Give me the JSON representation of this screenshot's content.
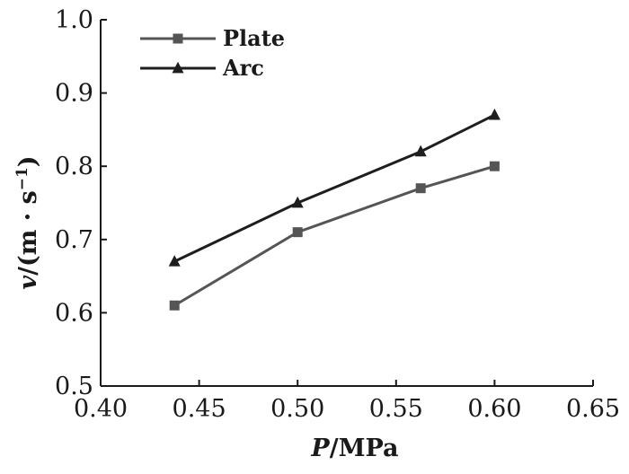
{
  "chart_data": {
    "type": "line",
    "title": "",
    "xlabel": {
      "var": "P",
      "unit": "/MPa"
    },
    "ylabel": {
      "var": "v",
      "unit": "/(m · s",
      "exp": "−1",
      "close": ")"
    },
    "xlim": [
      0.4,
      0.65
    ],
    "ylim": [
      0.5,
      1.0
    ],
    "xticks": [
      0.4,
      0.45,
      0.5,
      0.55,
      0.6,
      0.65
    ],
    "xtick_labels": [
      "0.40",
      "0.45",
      "0.50",
      "0.55",
      "0.60",
      "0.65"
    ],
    "yticks": [
      0.5,
      0.6,
      0.7,
      0.8,
      0.9,
      1.0
    ],
    "ytick_labels": [
      "0.5",
      "0.6",
      "0.7",
      "0.8",
      "0.9",
      "1.0"
    ],
    "legend_position": "top-left",
    "series": [
      {
        "name": "Plate",
        "marker": "square",
        "color": "#555555",
        "x": [
          0.4375,
          0.5,
          0.5625,
          0.6
        ],
        "y": [
          0.61,
          0.71,
          0.77,
          0.8
        ]
      },
      {
        "name": "Arc",
        "marker": "triangle",
        "color": "#1e1e1e",
        "x": [
          0.4375,
          0.5,
          0.5625,
          0.6
        ],
        "y": [
          0.67,
          0.75,
          0.82,
          0.87
        ]
      }
    ]
  }
}
